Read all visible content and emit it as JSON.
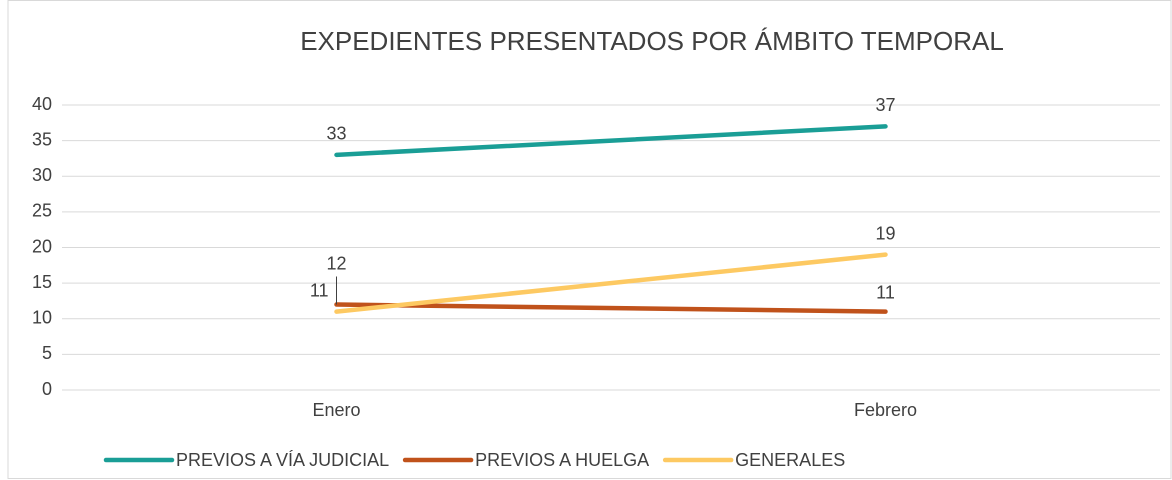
{
  "chart_data": {
    "type": "line",
    "title": "EXPEDIENTES PRESENTADOS POR ÁMBITO TEMPORAL",
    "categories": [
      "Enero",
      "Febrero"
    ],
    "series": [
      {
        "name": "PREVIOS A VÍA JUDICIAL",
        "color": "#1a9e96",
        "values": [
          33,
          37
        ]
      },
      {
        "name": "PREVIOS A HUELGA",
        "color": "#c0521b",
        "values": [
          12,
          11
        ]
      },
      {
        "name": "GENERALES",
        "color": "#fdc962",
        "values": [
          11,
          19
        ]
      }
    ],
    "ylim": [
      0,
      40
    ],
    "yticks": [
      0,
      5,
      10,
      15,
      20,
      25,
      30,
      35,
      40
    ],
    "grid": true,
    "legend": "bottom"
  }
}
